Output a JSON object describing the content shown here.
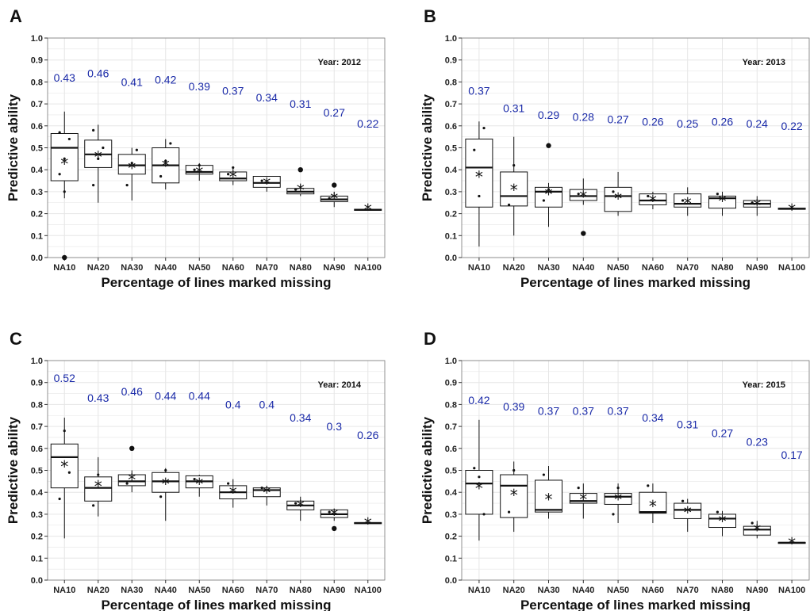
{
  "chart_data": [
    {
      "panel": "A",
      "type": "box",
      "year_label": "Year: 2012",
      "xlabel": "Percentage of lines marked missing",
      "ylabel": "Predictive ability",
      "ylim": [
        0,
        1
      ],
      "yticks": [
        "0.0",
        "0.1",
        "0.2",
        "0.3",
        "0.4",
        "0.5",
        "0.6",
        "0.7",
        "0.8",
        "0.9",
        "1.0"
      ],
      "grid": true,
      "categories": [
        "NA10",
        "NA20",
        "NA30",
        "NA40",
        "NA50",
        "NA60",
        "NA70",
        "NA80",
        "NA90",
        "NA100"
      ],
      "annotations": [
        "0.43",
        "0.46",
        "0.41",
        "0.42",
        "0.39",
        "0.37",
        "0.34",
        "0.31",
        "0.27",
        "0.22"
      ],
      "annotation_y": [
        0.82,
        0.84,
        0.8,
        0.81,
        0.78,
        0.76,
        0.73,
        0.7,
        0.66,
        0.61
      ],
      "boxes": [
        {
          "whisker_low": 0.27,
          "q1": 0.35,
          "median": 0.5,
          "q3": 0.565,
          "whisker_high": 0.665,
          "mean": 0.43,
          "outliers": [
            0.0
          ],
          "points": [
            0.38,
            0.45,
            0.54,
            0.57,
            0.3
          ]
        },
        {
          "whisker_low": 0.25,
          "q1": 0.41,
          "median": 0.47,
          "q3": 0.535,
          "whisker_high": 0.605,
          "mean": 0.46,
          "outliers": [],
          "points": [
            0.33,
            0.45,
            0.5,
            0.58
          ]
        },
        {
          "whisker_low": 0.26,
          "q1": 0.38,
          "median": 0.42,
          "q3": 0.47,
          "whisker_high": 0.5,
          "mean": 0.41,
          "outliers": [],
          "points": [
            0.33,
            0.43,
            0.49
          ]
        },
        {
          "whisker_low": 0.31,
          "q1": 0.34,
          "median": 0.42,
          "q3": 0.5,
          "whisker_high": 0.54,
          "mean": 0.42,
          "outliers": [],
          "points": [
            0.37,
            0.44,
            0.52
          ]
        },
        {
          "whisker_low": 0.35,
          "q1": 0.38,
          "median": 0.39,
          "q3": 0.42,
          "whisker_high": 0.43,
          "mean": 0.39,
          "outliers": [],
          "points": [
            0.4,
            0.42
          ]
        },
        {
          "whisker_low": 0.33,
          "q1": 0.35,
          "median": 0.36,
          "q3": 0.39,
          "whisker_high": 0.41,
          "mean": 0.37,
          "outliers": [],
          "points": [
            0.38,
            0.41
          ]
        },
        {
          "whisker_low": 0.3,
          "q1": 0.32,
          "median": 0.34,
          "q3": 0.37,
          "whisker_high": 0.37,
          "mean": 0.34,
          "outliers": [],
          "points": [
            0.35
          ]
        },
        {
          "whisker_low": 0.28,
          "q1": 0.29,
          "median": 0.3,
          "q3": 0.315,
          "whisker_high": 0.33,
          "mean": 0.31,
          "outliers": [
            0.4
          ],
          "points": [
            0.31
          ]
        },
        {
          "whisker_low": 0.23,
          "q1": 0.255,
          "median": 0.265,
          "q3": 0.28,
          "whisker_high": 0.3,
          "mean": 0.27,
          "outliers": [
            0.33
          ],
          "points": [
            0.27
          ]
        },
        {
          "whisker_low": 0.215,
          "q1": 0.215,
          "median": 0.217,
          "q3": 0.22,
          "whisker_high": 0.222,
          "mean": 0.22,
          "outliers": [],
          "points": []
        }
      ]
    },
    {
      "panel": "B",
      "type": "box",
      "year_label": "Year: 2013",
      "xlabel": "Percentage of lines marked missing",
      "ylabel": "Predictive ability",
      "ylim": [
        0,
        1
      ],
      "yticks": [
        "0.0",
        "0.1",
        "0.2",
        "0.3",
        "0.4",
        "0.5",
        "0.6",
        "0.7",
        "0.8",
        "0.9",
        "1.0"
      ],
      "grid": true,
      "categories": [
        "NA10",
        "NA20",
        "NA30",
        "NA40",
        "NA50",
        "NA60",
        "NA70",
        "NA80",
        "NA90",
        "NA100"
      ],
      "annotations": [
        "0.37",
        "0.31",
        "0.29",
        "0.28",
        "0.27",
        "0.26",
        "0.25",
        "0.26",
        "0.24",
        "0.22"
      ],
      "annotation_y": [
        0.76,
        0.68,
        0.65,
        0.64,
        0.63,
        0.62,
        0.61,
        0.62,
        0.61,
        0.6
      ],
      "boxes": [
        {
          "whisker_low": 0.05,
          "q1": 0.23,
          "median": 0.41,
          "q3": 0.54,
          "whisker_high": 0.62,
          "mean": 0.37,
          "outliers": [],
          "points": [
            0.49,
            0.28,
            0.59
          ]
        },
        {
          "whisker_low": 0.1,
          "q1": 0.235,
          "median": 0.28,
          "q3": 0.39,
          "whisker_high": 0.55,
          "mean": 0.31,
          "outliers": [],
          "points": [
            0.24,
            0.42
          ]
        },
        {
          "whisker_low": 0.14,
          "q1": 0.23,
          "median": 0.3,
          "q3": 0.32,
          "whisker_high": 0.34,
          "mean": 0.29,
          "outliers": [
            0.51
          ],
          "points": [
            0.26,
            0.31
          ]
        },
        {
          "whisker_low": 0.24,
          "q1": 0.26,
          "median": 0.28,
          "q3": 0.31,
          "whisker_high": 0.36,
          "mean": 0.28,
          "outliers": [
            0.11
          ],
          "points": [
            0.29
          ]
        },
        {
          "whisker_low": 0.19,
          "q1": 0.21,
          "median": 0.28,
          "q3": 0.32,
          "whisker_high": 0.39,
          "mean": 0.27,
          "outliers": [],
          "points": [
            0.3
          ]
        },
        {
          "whisker_low": 0.22,
          "q1": 0.24,
          "median": 0.26,
          "q3": 0.29,
          "whisker_high": 0.3,
          "mean": 0.26,
          "outliers": [],
          "points": [
            0.28
          ]
        },
        {
          "whisker_low": 0.19,
          "q1": 0.23,
          "median": 0.245,
          "q3": 0.29,
          "whisker_high": 0.32,
          "mean": 0.25,
          "outliers": [],
          "points": [
            0.26
          ]
        },
        {
          "whisker_low": 0.19,
          "q1": 0.225,
          "median": 0.27,
          "q3": 0.28,
          "whisker_high": 0.3,
          "mean": 0.26,
          "outliers": [],
          "points": [
            0.29
          ]
        },
        {
          "whisker_low": 0.19,
          "q1": 0.23,
          "median": 0.245,
          "q3": 0.26,
          "whisker_high": 0.28,
          "mean": 0.24,
          "outliers": [],
          "points": [
            0.25
          ]
        },
        {
          "whisker_low": 0.218,
          "q1": 0.22,
          "median": 0.222,
          "q3": 0.225,
          "whisker_high": 0.227,
          "mean": 0.22,
          "outliers": [],
          "points": []
        }
      ]
    },
    {
      "panel": "C",
      "type": "box",
      "year_label": "Year: 2014",
      "xlabel": "Percentage of lines marked missing",
      "ylabel": "Predictive ability",
      "ylim": [
        0,
        1
      ],
      "yticks": [
        "0.0",
        "0.1",
        "0.2",
        "0.3",
        "0.4",
        "0.5",
        "0.6",
        "0.7",
        "0.8",
        "0.9",
        "1.0"
      ],
      "grid": true,
      "categories": [
        "NA10",
        "NA20",
        "NA30",
        "NA40",
        "NA50",
        "NA60",
        "NA70",
        "NA80",
        "NA90",
        "NA100"
      ],
      "annotations": [
        "0.52",
        "0.43",
        "0.46",
        "0.44",
        "0.44",
        "0.4",
        "0.4",
        "0.34",
        "0.3",
        "0.26"
      ],
      "annotation_y": [
        0.92,
        0.83,
        0.86,
        0.84,
        0.84,
        0.8,
        0.8,
        0.74,
        0.7,
        0.66
      ],
      "boxes": [
        {
          "whisker_low": 0.19,
          "q1": 0.42,
          "median": 0.56,
          "q3": 0.62,
          "whisker_high": 0.74,
          "mean": 0.52,
          "outliers": [],
          "points": [
            0.37,
            0.68,
            0.49
          ]
        },
        {
          "whisker_low": 0.29,
          "q1": 0.36,
          "median": 0.42,
          "q3": 0.47,
          "whisker_high": 0.56,
          "mean": 0.43,
          "outliers": [],
          "points": [
            0.34,
            0.48
          ]
        },
        {
          "whisker_low": 0.4,
          "q1": 0.43,
          "median": 0.45,
          "q3": 0.48,
          "whisker_high": 0.5,
          "mean": 0.46,
          "outliers": [
            0.6
          ],
          "points": [
            0.44
          ]
        },
        {
          "whisker_low": 0.27,
          "q1": 0.4,
          "median": 0.45,
          "q3": 0.49,
          "whisker_high": 0.51,
          "mean": 0.44,
          "outliers": [],
          "points": [
            0.38,
            0.5
          ]
        },
        {
          "whisker_low": 0.38,
          "q1": 0.42,
          "median": 0.45,
          "q3": 0.475,
          "whisker_high": 0.48,
          "mean": 0.44,
          "outliers": [],
          "points": [
            0.46
          ]
        },
        {
          "whisker_low": 0.33,
          "q1": 0.37,
          "median": 0.4,
          "q3": 0.43,
          "whisker_high": 0.46,
          "mean": 0.4,
          "outliers": [],
          "points": [
            0.44
          ]
        },
        {
          "whisker_low": 0.34,
          "q1": 0.38,
          "median": 0.41,
          "q3": 0.42,
          "whisker_high": 0.43,
          "mean": 0.4,
          "outliers": [],
          "points": [
            0.42
          ]
        },
        {
          "whisker_low": 0.27,
          "q1": 0.32,
          "median": 0.34,
          "q3": 0.36,
          "whisker_high": 0.38,
          "mean": 0.34,
          "outliers": [],
          "points": [
            0.35
          ]
        },
        {
          "whisker_low": 0.27,
          "q1": 0.285,
          "median": 0.3,
          "q3": 0.32,
          "whisker_high": 0.32,
          "mean": 0.3,
          "outliers": [
            0.235
          ],
          "points": [
            0.31
          ]
        },
        {
          "whisker_low": 0.255,
          "q1": 0.257,
          "median": 0.26,
          "q3": 0.262,
          "whisker_high": 0.265,
          "mean": 0.26,
          "outliers": [],
          "points": []
        }
      ]
    },
    {
      "panel": "D",
      "type": "box",
      "year_label": "Year: 2015",
      "xlabel": "Percentage of lines marked missing",
      "ylabel": "Predictive ability",
      "ylim": [
        0,
        1
      ],
      "yticks": [
        "0.0",
        "0.1",
        "0.2",
        "0.3",
        "0.4",
        "0.5",
        "0.6",
        "0.7",
        "0.8",
        "0.9",
        "1.0"
      ],
      "grid": true,
      "categories": [
        "NA10",
        "NA20",
        "NA30",
        "NA40",
        "NA50",
        "NA60",
        "NA70",
        "NA80",
        "NA90",
        "NA100"
      ],
      "annotations": [
        "0.42",
        "0.39",
        "0.37",
        "0.37",
        "0.37",
        "0.34",
        "0.31",
        "0.27",
        "0.23",
        "0.17"
      ],
      "annotation_y": [
        0.82,
        0.79,
        0.77,
        0.77,
        0.77,
        0.74,
        0.71,
        0.67,
        0.63,
        0.57
      ],
      "boxes": [
        {
          "whisker_low": 0.18,
          "q1": 0.3,
          "median": 0.44,
          "q3": 0.5,
          "whisker_high": 0.73,
          "mean": 0.42,
          "outliers": [],
          "points": [
            0.51,
            0.47,
            0.3
          ]
        },
        {
          "whisker_low": 0.22,
          "q1": 0.285,
          "median": 0.43,
          "q3": 0.48,
          "whisker_high": 0.54,
          "mean": 0.39,
          "outliers": [],
          "points": [
            0.31,
            0.5
          ]
        },
        {
          "whisker_low": 0.28,
          "q1": 0.31,
          "median": 0.32,
          "q3": 0.455,
          "whisker_high": 0.52,
          "mean": 0.37,
          "outliers": [],
          "points": [
            0.48
          ]
        },
        {
          "whisker_low": 0.28,
          "q1": 0.35,
          "median": 0.36,
          "q3": 0.395,
          "whisker_high": 0.44,
          "mean": 0.37,
          "outliers": [],
          "points": [
            0.42
          ]
        },
        {
          "whisker_low": 0.26,
          "q1": 0.345,
          "median": 0.38,
          "q3": 0.395,
          "whisker_high": 0.44,
          "mean": 0.37,
          "outliers": [],
          "points": [
            0.3,
            0.42
          ]
        },
        {
          "whisker_low": 0.26,
          "q1": 0.305,
          "median": 0.31,
          "q3": 0.4,
          "whisker_high": 0.44,
          "mean": 0.34,
          "outliers": [],
          "points": [
            0.43
          ]
        },
        {
          "whisker_low": 0.22,
          "q1": 0.28,
          "median": 0.32,
          "q3": 0.35,
          "whisker_high": 0.37,
          "mean": 0.31,
          "outliers": [],
          "points": [
            0.36
          ]
        },
        {
          "whisker_low": 0.2,
          "q1": 0.24,
          "median": 0.28,
          "q3": 0.3,
          "whisker_high": 0.315,
          "mean": 0.27,
          "outliers": [],
          "points": [
            0.31
          ]
        },
        {
          "whisker_low": 0.19,
          "q1": 0.205,
          "median": 0.23,
          "q3": 0.245,
          "whisker_high": 0.27,
          "mean": 0.23,
          "outliers": [],
          "points": [
            0.26
          ]
        },
        {
          "whisker_low": 0.165,
          "q1": 0.167,
          "median": 0.17,
          "q3": 0.172,
          "whisker_high": 0.175,
          "mean": 0.17,
          "outliers": [],
          "points": []
        }
      ]
    }
  ],
  "colors": {
    "annotation": "#1a2aa8",
    "grid": "#e6e6e6",
    "box": "#111111",
    "text": "#111111"
  }
}
